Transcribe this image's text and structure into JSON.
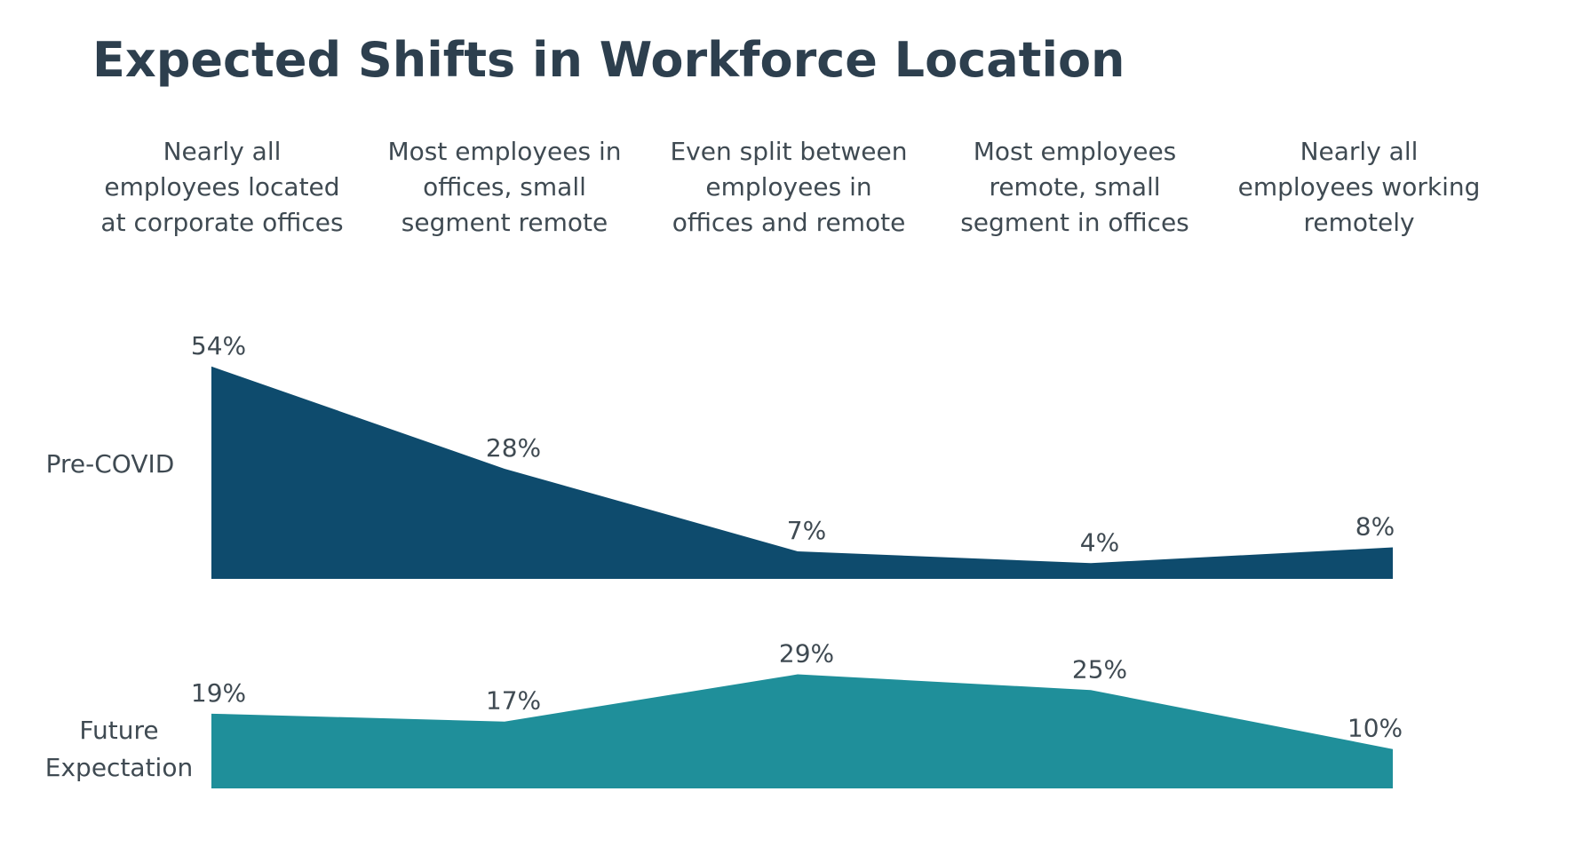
{
  "title": "Expected Shifts in Workforce Location",
  "chart_data": {
    "type": "area",
    "title": "Expected Shifts in Workforce Location",
    "categories": [
      [
        "Nearly all",
        "employees located",
        "at corporate offices"
      ],
      [
        "Most employees in",
        "offices, small",
        "segment remote"
      ],
      [
        "Even split between",
        "employees in",
        "offices and remote"
      ],
      [
        "Most employees",
        "remote, small",
        "segment in offices"
      ],
      [
        "Nearly all",
        "employees working",
        "remotely"
      ]
    ],
    "series": [
      {
        "name": "Pre-COVID",
        "name_lines": [
          "Pre-COVID"
        ],
        "values": [
          54,
          28,
          7,
          4,
          8
        ],
        "unit": "%",
        "color": "#0e4b6d"
      },
      {
        "name": "Future Expectation",
        "name_lines": [
          "Future",
          "Expectation"
        ],
        "values": [
          19,
          17,
          29,
          25,
          10
        ],
        "unit": "%",
        "color": "#1f8f9a"
      }
    ],
    "legend": "left row labels",
    "grid": false,
    "ylim": [
      0,
      54
    ]
  }
}
